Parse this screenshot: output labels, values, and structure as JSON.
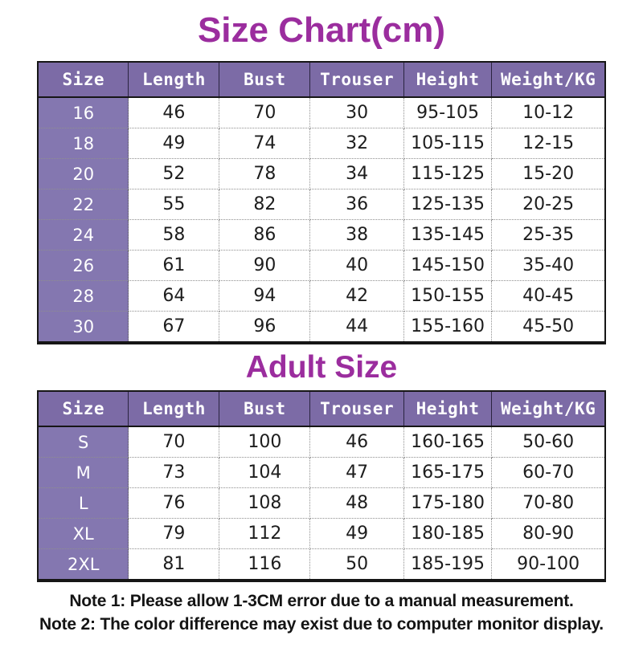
{
  "page": {
    "title": "Size Chart(cm)",
    "adult_title": "Adult Size",
    "note1": "Note 1: Please allow 1-3CM error due to a manual measurement.",
    "note2": "Note 2: The color difference may exist due to computer monitor display."
  },
  "colors": {
    "title_magenta": "#9B2D9E",
    "header_purple": "#7C6BA6",
    "size_col_purple": "#8477B0",
    "border_black": "#161616",
    "grid_gray": "#8F8F8F"
  },
  "chart_data": [
    {
      "type": "table",
      "title": "Size Chart(cm)",
      "columns": [
        "Size",
        "Length",
        "Bust",
        "Trouser",
        "Height",
        "Weight/KG"
      ],
      "rows": [
        [
          "16",
          "46",
          "70",
          "30",
          "95-105",
          "10-12"
        ],
        [
          "18",
          "49",
          "74",
          "32",
          "105-115",
          "12-15"
        ],
        [
          "20",
          "52",
          "78",
          "34",
          "115-125",
          "15-20"
        ],
        [
          "22",
          "55",
          "82",
          "36",
          "125-135",
          "20-25"
        ],
        [
          "24",
          "58",
          "86",
          "38",
          "135-145",
          "25-35"
        ],
        [
          "26",
          "61",
          "90",
          "40",
          "145-150",
          "35-40"
        ],
        [
          "28",
          "64",
          "94",
          "42",
          "150-155",
          "40-45"
        ],
        [
          "30",
          "67",
          "96",
          "44",
          "155-160",
          "45-50"
        ]
      ]
    },
    {
      "type": "table",
      "title": "Adult Size",
      "columns": [
        "Size",
        "Length",
        "Bust",
        "Trouser",
        "Height",
        "Weight/KG"
      ],
      "rows": [
        [
          "S",
          "70",
          "100",
          "46",
          "160-165",
          "50-60"
        ],
        [
          "M",
          "73",
          "104",
          "47",
          "165-175",
          "60-70"
        ],
        [
          "L",
          "76",
          "108",
          "48",
          "175-180",
          "70-80"
        ],
        [
          "XL",
          "79",
          "112",
          "49",
          "180-185",
          "80-90"
        ],
        [
          "2XL",
          "81",
          "116",
          "50",
          "185-195",
          "90-100"
        ]
      ]
    }
  ]
}
